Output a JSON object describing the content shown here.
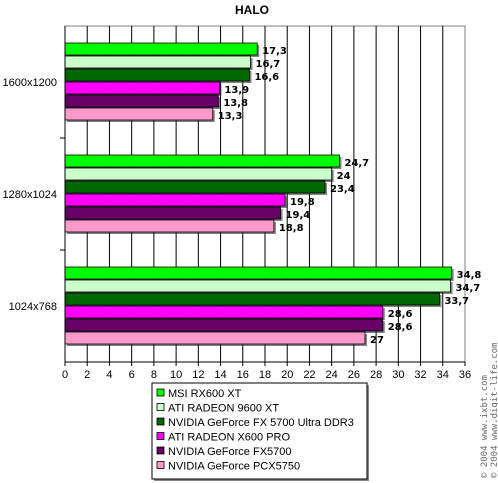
{
  "watermark": [
    "© 2004 www.ixbt.com",
    "© 2004 www.digit-life.com"
  ],
  "chart_data": {
    "type": "bar",
    "orientation": "horizontal",
    "title": "HALO",
    "categories": [
      "1600x1200",
      "1280x1024",
      "1024x768"
    ],
    "xlim": [
      0,
      36
    ],
    "xticks": [
      0,
      2,
      4,
      6,
      8,
      10,
      12,
      14,
      16,
      18,
      20,
      22,
      24,
      26,
      28,
      30,
      32,
      34,
      36
    ],
    "grid": "vertical",
    "legend_position": "bottom",
    "series": [
      {
        "name": "MSI  RX600 XT",
        "color": "#00ff00",
        "values": [
          17.3,
          24.7,
          34.8
        ],
        "labels": [
          "17,3",
          "24,7",
          "34,8"
        ]
      },
      {
        "name": "ATI RADEON 9600 XT",
        "color": "#ccffcc",
        "values": [
          16.7,
          24,
          34.7
        ],
        "labels": [
          "16,7",
          "24",
          "34,7"
        ]
      },
      {
        "name": "NVIDIA GeForce FX 5700 Ultra DDR3",
        "color": "#006600",
        "values": [
          16.6,
          23.4,
          33.7
        ],
        "labels": [
          "16,6",
          "23,4",
          "33,7"
        ]
      },
      {
        "name": "ATI RADEON X600 PRO",
        "color": "#ff00ff",
        "values": [
          13.9,
          19.8,
          28.6
        ],
        "labels": [
          "13,9",
          "19,8",
          "28,6"
        ]
      },
      {
        "name": "NVIDIA GeForce FX5700",
        "color": "#660066",
        "values": [
          13.8,
          19.4,
          28.6
        ],
        "labels": [
          "13,8",
          "19,4",
          "28,6"
        ]
      },
      {
        "name": "NVIDIA GeForce PCX5750",
        "color": "#ff99cc",
        "values": [
          13.3,
          18.8,
          27
        ],
        "labels": [
          "13,3",
          "18,8",
          "27"
        ]
      }
    ]
  }
}
